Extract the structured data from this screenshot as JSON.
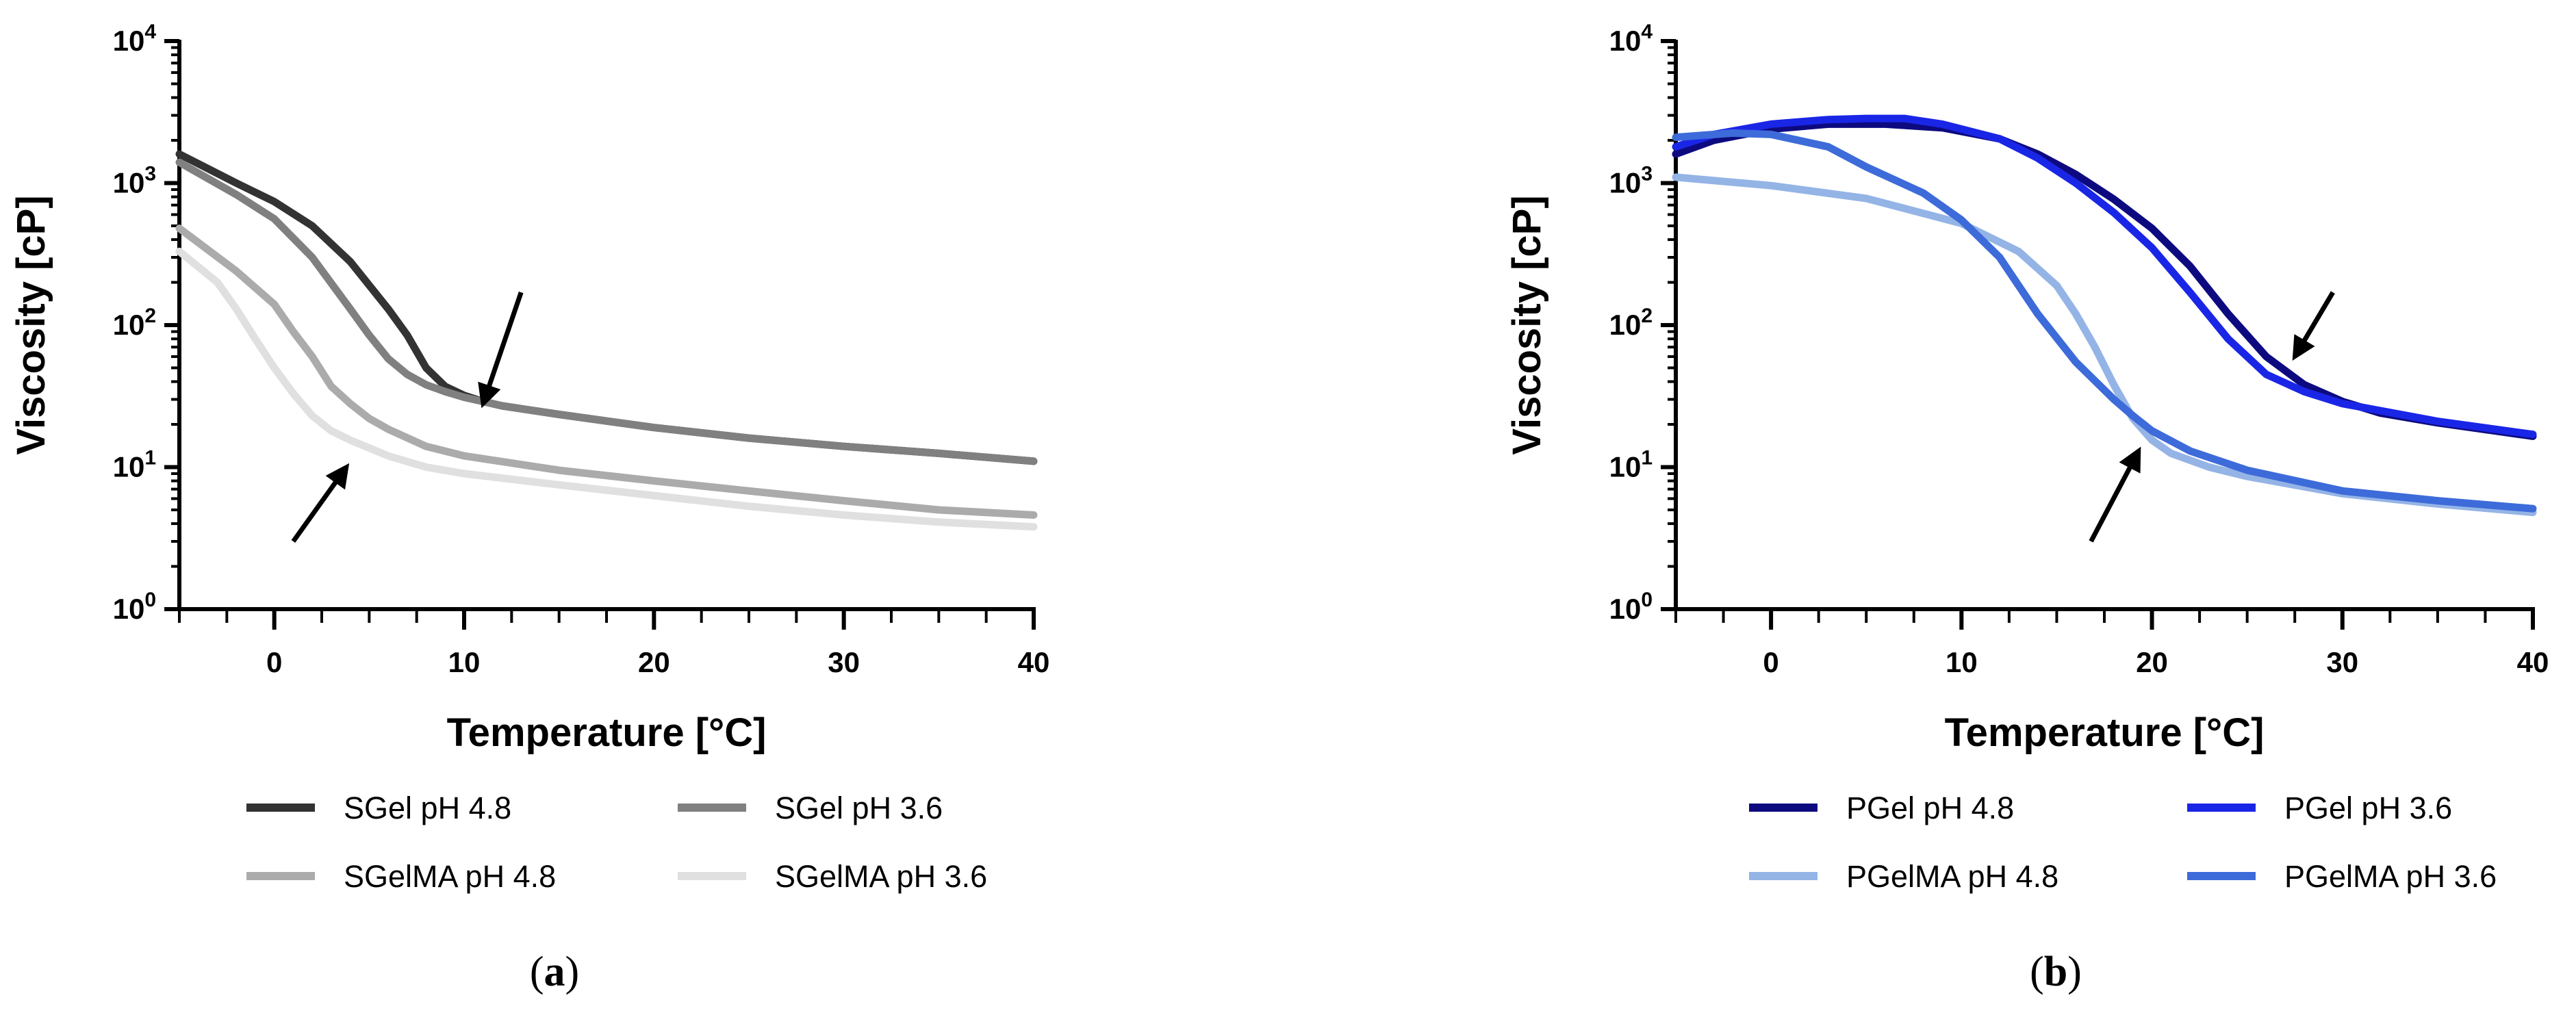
{
  "chart_data": [
    {
      "type": "line",
      "panel": "a",
      "caption_letter": "a",
      "xlabel": "Temperature [°C]",
      "ylabel": "Viscosity [cP]",
      "xlim": [
        -5,
        40
      ],
      "ylim": [
        1,
        10000
      ],
      "yscale": "log",
      "xticks": [
        0,
        10,
        20,
        30,
        40
      ],
      "xtick_labels": [
        "0",
        "10",
        "20",
        "30",
        "40"
      ],
      "ytick_exponents": [
        "0",
        "1",
        "2",
        "3",
        "4"
      ],
      "legend_position": "below",
      "series": [
        {
          "name": "SGel pH 4.8",
          "color": "#333333",
          "x": [
            -5,
            -2,
            0,
            2,
            4,
            6,
            7,
            8,
            9,
            10,
            11,
            12,
            15,
            20,
            25,
            30,
            35,
            40
          ],
          "y": [
            1600,
            1000,
            740,
            500,
            280,
            130,
            85,
            50,
            37,
            32,
            29,
            27,
            23.5,
            19,
            16,
            14,
            12.5,
            11
          ]
        },
        {
          "name": "SGel pH 3.6",
          "color": "#808080",
          "x": [
            -5,
            -2,
            0,
            2,
            4,
            5,
            6,
            7,
            8,
            9,
            10,
            11,
            12,
            15,
            20,
            25,
            30,
            35,
            40
          ],
          "y": [
            1400,
            830,
            560,
            300,
            130,
            85,
            58,
            45,
            38,
            34,
            31,
            29,
            27,
            23.5,
            19,
            16,
            14,
            12.5,
            11
          ]
        },
        {
          "name": "SGelMA pH 4.8",
          "color": "#ababab",
          "x": [
            -5,
            -2,
            0,
            1,
            2,
            3,
            4,
            5,
            6,
            8,
            10,
            15,
            20,
            25,
            30,
            35,
            40
          ],
          "y": [
            480,
            240,
            140,
            90,
            60,
            37,
            28,
            22,
            18.5,
            14,
            12,
            9.5,
            8,
            6.8,
            5.8,
            5,
            4.6
          ]
        },
        {
          "name": "SGelMA pH 3.6",
          "color": "#e0e0e0",
          "x": [
            -5,
            -3,
            -2,
            -1,
            0,
            1,
            2,
            3,
            4,
            6,
            8,
            10,
            15,
            20,
            25,
            30,
            35,
            40
          ],
          "y": [
            330,
            200,
            130,
            80,
            50,
            33,
            23,
            18,
            15.5,
            12,
            10,
            9,
            7.5,
            6.3,
            5.3,
            4.6,
            4.1,
            3.8
          ]
        }
      ],
      "annotations": [
        {
          "type": "arrow",
          "from": [
            13,
            170
          ],
          "to": [
            11,
            28
          ]
        },
        {
          "type": "arrow",
          "from": [
            1,
            3
          ],
          "to": [
            3.8,
            10
          ]
        }
      ]
    },
    {
      "type": "line",
      "panel": "b",
      "caption_letter": "b",
      "xlabel": "Temperature [°C]",
      "ylabel": "Viscosity [cP]",
      "xlim": [
        -5,
        40
      ],
      "ylim": [
        1,
        10000
      ],
      "yscale": "log",
      "xticks": [
        0,
        10,
        20,
        30,
        40
      ],
      "xtick_labels": [
        "0",
        "10",
        "20",
        "30",
        "40"
      ],
      "ytick_exponents": [
        "0",
        "1",
        "2",
        "3",
        "4"
      ],
      "legend_position": "below",
      "series": [
        {
          "name": "PGel pH 4.8",
          "color": "#0d0a80",
          "x": [
            -5,
            -3,
            0,
            3,
            6,
            9,
            12,
            14,
            16,
            18,
            20,
            22,
            24,
            26,
            28,
            30,
            32,
            35,
            40
          ],
          "y": [
            1600,
            2000,
            2400,
            2600,
            2600,
            2450,
            2050,
            1600,
            1150,
            770,
            480,
            260,
            120,
            60,
            38,
            29,
            24,
            20.5,
            16.5
          ]
        },
        {
          "name": "PGel pH 3.6",
          "color": "#1a26e6",
          "x": [
            -5,
            -3,
            0,
            3,
            5,
            7,
            9,
            12,
            14,
            16,
            18,
            20,
            22,
            24,
            26,
            28,
            30,
            35,
            40
          ],
          "y": [
            1800,
            2200,
            2600,
            2800,
            2850,
            2850,
            2600,
            2050,
            1500,
            1000,
            620,
            350,
            170,
            80,
            45,
            34,
            28,
            21,
            17
          ]
        },
        {
          "name": "PGelMA pH 4.8",
          "color": "#94b4e6",
          "x": [
            -5,
            0,
            5,
            10,
            13,
            15,
            16,
            17,
            18,
            19,
            20,
            21,
            23,
            25,
            30,
            35,
            40
          ],
          "y": [
            1100,
            960,
            780,
            520,
            330,
            190,
            120,
            70,
            38,
            22,
            15.5,
            12.5,
            10,
            8.6,
            6.5,
            5.5,
            4.8
          ]
        },
        {
          "name": "PGelMA pH 3.6",
          "color": "#3d6bd9",
          "x": [
            -5,
            -2,
            0,
            3,
            5,
            8,
            10,
            12,
            14,
            16,
            18,
            19,
            20,
            22,
            25,
            30,
            35,
            40
          ],
          "y": [
            2100,
            2250,
            2200,
            1800,
            1300,
            850,
            550,
            300,
            120,
            55,
            30,
            23,
            18,
            13,
            9.5,
            6.8,
            5.8,
            5.1
          ]
        }
      ],
      "annotations": [
        {
          "type": "arrow",
          "from": [
            29.5,
            170
          ],
          "to": [
            27.5,
            60
          ]
        },
        {
          "type": "arrow",
          "from": [
            16.8,
            3
          ],
          "to": [
            19.3,
            13
          ]
        }
      ]
    }
  ]
}
